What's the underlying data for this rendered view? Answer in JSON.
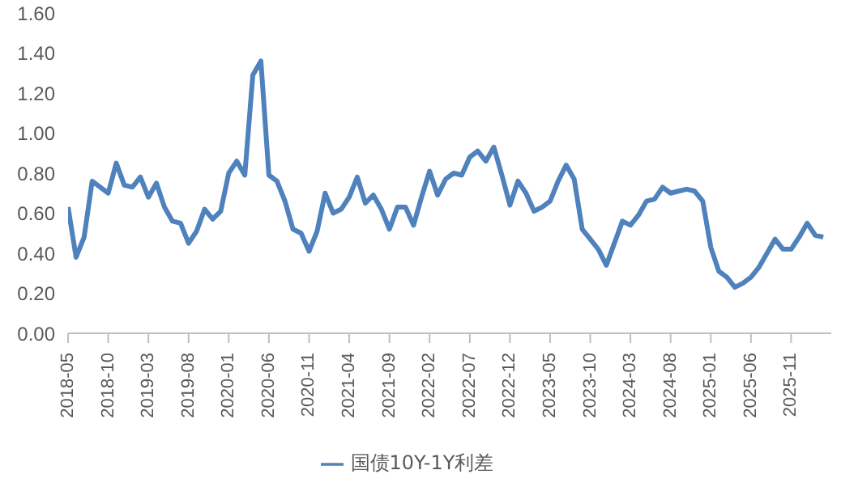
{
  "chart_data": {
    "type": "line",
    "categories": [
      "2018-05",
      null,
      null,
      null,
      null,
      "2018-10",
      null,
      null,
      null,
      null,
      "2019-03",
      null,
      null,
      null,
      null,
      "2019-08",
      null,
      null,
      null,
      null,
      "2020-01",
      null,
      null,
      null,
      null,
      "2020-06",
      null,
      null,
      null,
      null,
      "2020-11",
      null,
      null,
      null,
      null,
      "2021-04",
      null,
      null,
      null,
      null,
      "2021-09",
      null,
      null,
      null,
      null,
      "2022-02",
      null,
      null,
      null,
      null,
      "2022-07",
      null,
      null,
      null,
      null,
      "2022-12",
      null,
      null,
      null,
      null,
      "2023-05",
      null,
      null,
      null,
      null,
      "2023-10",
      null,
      null,
      null,
      null,
      "2024-03",
      null,
      null,
      null,
      null,
      "2024-08",
      null,
      null,
      null,
      null,
      "2025-01",
      null,
      null,
      null,
      null,
      "2025-06",
      null,
      null,
      null,
      null,
      "2025-11",
      null,
      null,
      null,
      null
    ],
    "series": [
      {
        "name": "国债10Y-1Y利差",
        "color": "#4f81bd",
        "values": [
          0.63,
          0.38,
          0.48,
          0.76,
          0.73,
          0.7,
          0.85,
          0.74,
          0.73,
          0.78,
          0.68,
          0.75,
          0.63,
          0.56,
          0.55,
          0.45,
          0.51,
          0.62,
          0.57,
          0.61,
          0.8,
          0.86,
          0.79,
          1.29,
          1.36,
          0.79,
          0.76,
          0.66,
          0.52,
          0.5,
          0.41,
          0.51,
          0.7,
          0.6,
          0.62,
          0.68,
          0.78,
          0.65,
          0.69,
          0.62,
          0.52,
          0.63,
          0.63,
          0.54,
          0.68,
          0.81,
          0.69,
          0.77,
          0.8,
          0.79,
          0.88,
          0.91,
          0.86,
          0.93,
          0.79,
          0.64,
          0.76,
          0.7,
          0.61,
          0.63,
          0.66,
          0.76,
          0.84,
          0.77,
          0.52,
          0.47,
          0.42,
          0.34,
          0.45,
          0.56,
          0.54,
          0.59,
          0.66,
          0.67,
          0.73,
          0.7,
          0.71,
          0.72,
          0.71,
          0.66,
          0.43,
          0.31,
          0.28,
          0.23,
          0.25,
          0.28,
          0.33,
          0.4,
          0.47,
          0.42,
          0.42,
          0.48,
          0.55,
          0.49,
          0.48
        ]
      }
    ],
    "ylim": [
      0,
      1.6
    ],
    "yticks": [
      {
        "value": 0,
        "label": "0.00"
      },
      {
        "value": 0.2,
        "label": "0.20"
      },
      {
        "value": 0.4,
        "label": "0.40"
      },
      {
        "value": 0.6,
        "label": "0.60"
      },
      {
        "value": 0.8,
        "label": "0.80"
      },
      {
        "value": 1.0,
        "label": "1.00"
      },
      {
        "value": 1.2,
        "label": "1.20"
      },
      {
        "value": 1.4,
        "label": "1.40"
      },
      {
        "value": 1.6,
        "label": "1.60"
      }
    ],
    "grid": false,
    "legend": "bottom",
    "marker": "none",
    "line_style": "solid"
  }
}
